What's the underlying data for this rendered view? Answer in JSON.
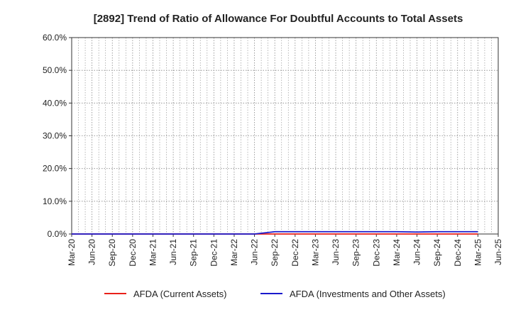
{
  "chart_data": {
    "type": "line",
    "title": "[2892]  Trend of Ratio of Allowance For Doubtful Accounts to Total Assets",
    "xlabel": "",
    "ylabel": "",
    "ylim": [
      0,
      0.6
    ],
    "y_ticks": [
      {
        "value": 0.0,
        "label": "0.0%"
      },
      {
        "value": 0.1,
        "label": "10.0%"
      },
      {
        "value": 0.2,
        "label": "20.0%"
      },
      {
        "value": 0.3,
        "label": "30.0%"
      },
      {
        "value": 0.4,
        "label": "40.0%"
      },
      {
        "value": 0.5,
        "label": "50.0%"
      },
      {
        "value": 0.6,
        "label": "60.0%"
      }
    ],
    "x_ticks": [
      "Mar-20",
      "Jun-20",
      "Sep-20",
      "Dec-20",
      "Mar-21",
      "Jun-21",
      "Sep-21",
      "Dec-21",
      "Mar-22",
      "Jun-22",
      "Sep-22",
      "Dec-22",
      "Mar-23",
      "Jun-23",
      "Sep-23",
      "Dec-23",
      "Mar-24",
      "Jun-24",
      "Sep-24",
      "Dec-24",
      "Mar-25",
      "Jun-25"
    ],
    "grid": true,
    "legend_position": "bottom",
    "series": [
      {
        "name": "AFDA (Current Assets)",
        "color": "#e8201a",
        "x": [
          "Mar-20",
          "Jun-20",
          "Sep-20",
          "Dec-20",
          "Mar-21",
          "Jun-21",
          "Sep-21",
          "Dec-21",
          "Mar-22",
          "Jun-22",
          "Sep-22",
          "Dec-22",
          "Mar-23",
          "Jun-23",
          "Sep-23",
          "Dec-23",
          "Mar-24",
          "Jun-24",
          "Sep-24",
          "Dec-24",
          "Mar-25"
        ],
        "values": [
          0,
          0,
          0,
          0,
          0,
          0,
          0,
          0,
          0,
          0,
          0,
          0,
          0,
          0,
          0,
          0,
          0,
          0,
          0,
          0,
          0
        ]
      },
      {
        "name": "AFDA (Investments and Other Assets)",
        "color": "#1a1acc",
        "x": [
          "Mar-20",
          "Jun-20",
          "Sep-20",
          "Dec-20",
          "Mar-21",
          "Jun-21",
          "Sep-21",
          "Dec-21",
          "Mar-22",
          "Jun-22",
          "Sep-22",
          "Dec-22",
          "Mar-23",
          "Jun-23",
          "Sep-23",
          "Dec-23",
          "Mar-24",
          "Jun-24",
          "Sep-24",
          "Dec-24",
          "Mar-25"
        ],
        "values": [
          0,
          0,
          0,
          0,
          0,
          0,
          0,
          0,
          0,
          0,
          0.007,
          0.007,
          0.007,
          0.007,
          0.007,
          0.007,
          0.007,
          0.006,
          0.007,
          0.007,
          0.007
        ]
      }
    ]
  }
}
